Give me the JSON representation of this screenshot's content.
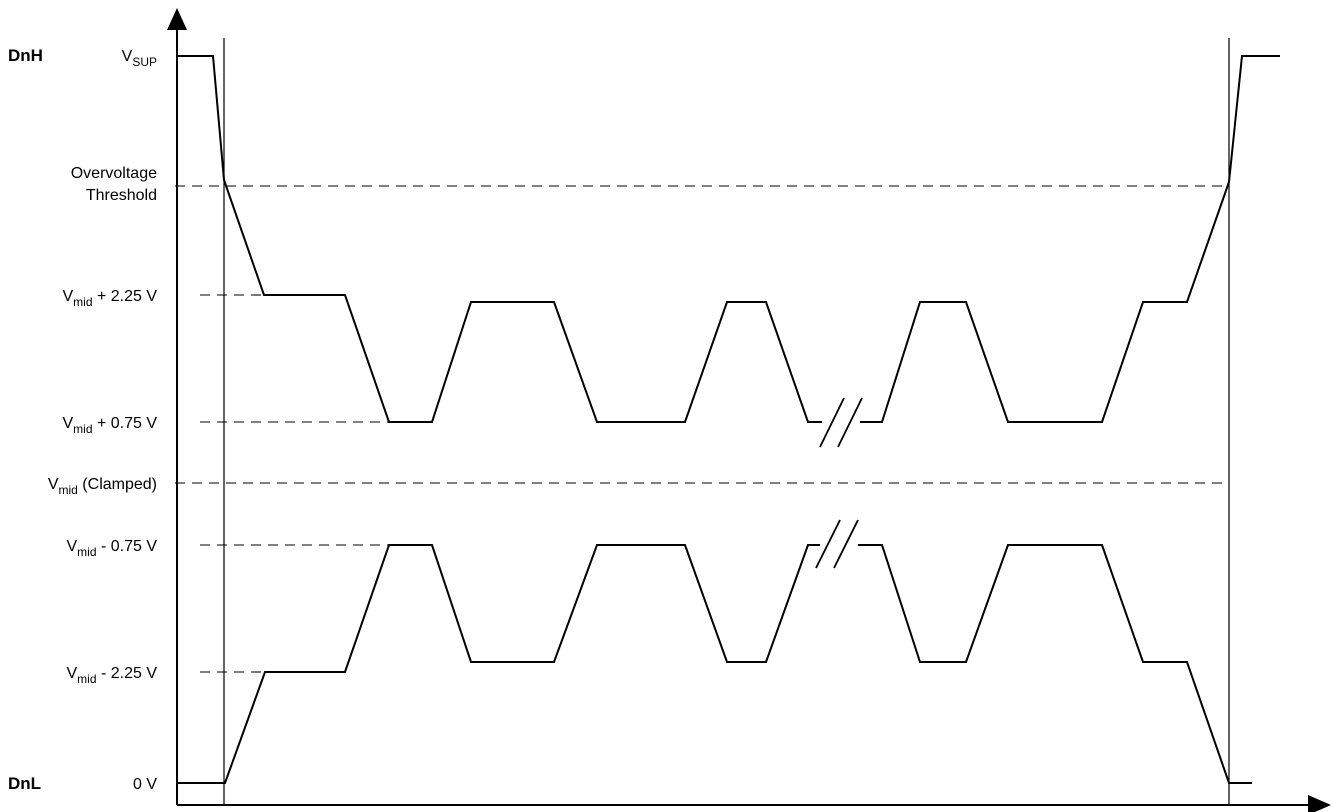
{
  "signals": {
    "high": "DnH",
    "low": "DnL"
  },
  "levels": {
    "vsup": {
      "main": "V",
      "sub": "SUP",
      "tail": ""
    },
    "overvoltage_line1": "Overvoltage",
    "overvoltage_line2": "Threshold",
    "vmid_p225": {
      "main": "V",
      "sub": "mid",
      "tail": " + 2.25 V"
    },
    "vmid_p075": {
      "main": "V",
      "sub": "mid",
      "tail": " + 0.75 V"
    },
    "vmid_clamped": {
      "main": "V",
      "sub": "mid",
      "tail": " (Clamped)"
    },
    "vmid_m075": {
      "main": "V",
      "sub": "mid",
      "tail": " - 0.75 V"
    },
    "vmid_m225": {
      "main": "V",
      "sub": "mid",
      "tail": " - 2.25 V"
    },
    "zero": "0 V"
  }
}
